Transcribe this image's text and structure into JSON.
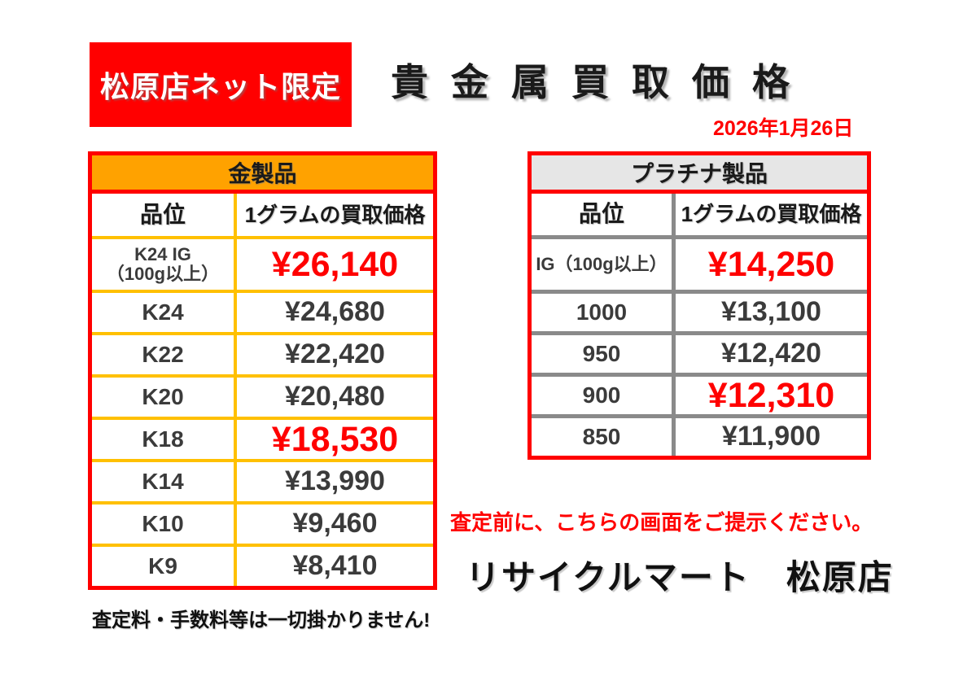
{
  "banner": {
    "label": "松原店ネット限定"
  },
  "title": "貴金属買取価格",
  "date": "2026年1月26日",
  "gold_table": {
    "title": "金製品",
    "columns": {
      "grade": "品位",
      "price": "1グラムの買取価格"
    },
    "rows": [
      {
        "grade": "K24 IG\n（100g以上）",
        "price": "¥26,140",
        "highlight": true
      },
      {
        "grade": "K24",
        "price": "¥24,680",
        "highlight": false
      },
      {
        "grade": "K22",
        "price": "¥22,420",
        "highlight": false
      },
      {
        "grade": "K20",
        "price": "¥20,480",
        "highlight": false
      },
      {
        "grade": "K18",
        "price": "¥18,530",
        "highlight": true
      },
      {
        "grade": "K14",
        "price": "¥13,990",
        "highlight": false
      },
      {
        "grade": "K10",
        "price": "¥9,460",
        "highlight": false
      },
      {
        "grade": "K9",
        "price": "¥8,410",
        "highlight": false
      }
    ]
  },
  "platinum_table": {
    "title": "プラチナ製品",
    "columns": {
      "grade": "品位",
      "price": "1グラムの買取価格"
    },
    "rows": [
      {
        "grade": "IG（100g以上）",
        "price": "¥14,250",
        "highlight": true
      },
      {
        "grade": "1000",
        "price": "¥13,100",
        "highlight": false
      },
      {
        "grade": "950",
        "price": "¥12,420",
        "highlight": false
      },
      {
        "grade": "900",
        "price": "¥12,310",
        "highlight": true
      },
      {
        "grade": "850",
        "price": "¥11,900",
        "highlight": false
      }
    ]
  },
  "notes": {
    "present_screen": "査定前に、こちらの画面をご提示ください。",
    "store_name": "リサイクルマート　松原店",
    "no_fee": "査定料・手数料等は一切掛かりません!"
  },
  "colors": {
    "accent_red": "#ff0000",
    "gold_header": "#ffa200",
    "gold_border": "#ffc000",
    "platinum_header": "#e6e6e6",
    "platinum_border": "#8a8a8a",
    "body_text": "#3b3b3b"
  }
}
